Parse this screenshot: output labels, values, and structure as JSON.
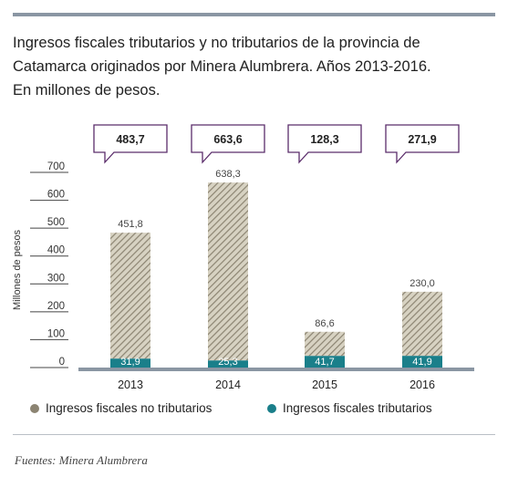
{
  "title": "Ingresos fiscales tributarios y no tributarios de la provincia de\nCatamarca originados por Minera Alumbrera. Años 2013-2016.\nEn millones de pesos.",
  "source": "Fuentes: Minera Alumbrera",
  "colors": {
    "no_tributarios": "#8c8472",
    "tributarios": "#1a7f8a",
    "callout_border": "#5b2d6b",
    "axis": "#8a96a3"
  },
  "chart_data": {
    "type": "bar",
    "stacked": true,
    "categories": [
      "2013",
      "2014",
      "2015",
      "2016"
    ],
    "totals": [
      "483,7",
      "663,6",
      "128,3",
      "271,9"
    ],
    "series": [
      {
        "name": "Ingresos fiscales tributarios",
        "values": [
          31.9,
          25.3,
          41.7,
          41.9
        ],
        "labels": [
          "31,9",
          "25,3",
          "41,7",
          "41,9"
        ]
      },
      {
        "name": "Ingresos fiscales no tributarios",
        "values": [
          451.8,
          638.3,
          86.6,
          230.0
        ],
        "labels": [
          "451,8",
          "638,3",
          "86,6",
          "230,0"
        ]
      }
    ],
    "ylabel": "Millones de pesos",
    "ylim": [
      0,
      700
    ],
    "yticks": [
      "0",
      "100",
      "200",
      "300",
      "400",
      "500",
      "600",
      "700"
    ],
    "legend": [
      "Ingresos fiscales no tributarios",
      "Ingresos fiscales tributarios"
    ],
    "legend_position": "bottom"
  }
}
